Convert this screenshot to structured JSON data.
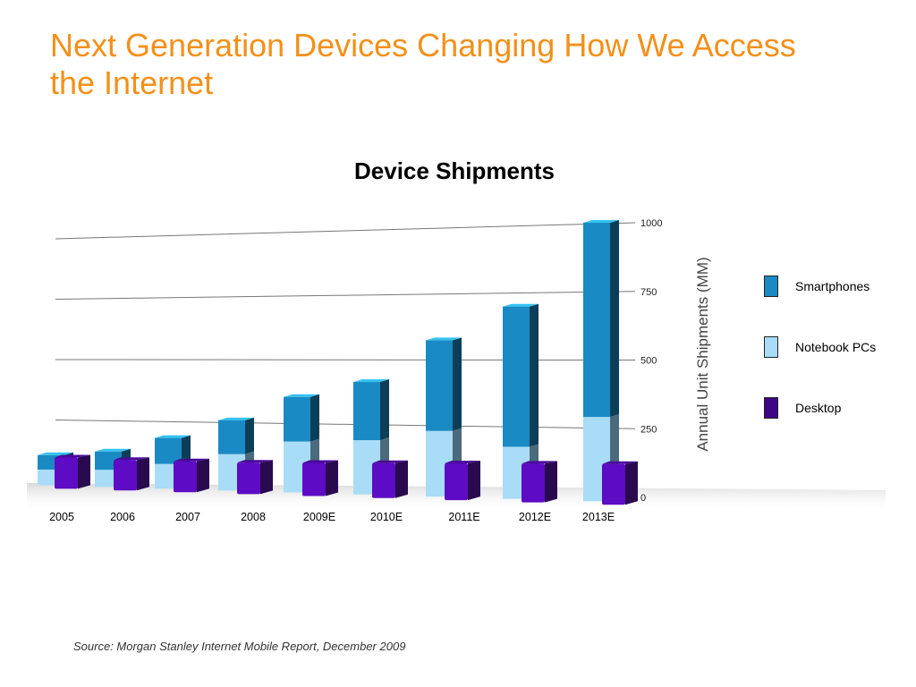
{
  "slide": {
    "title": "Next Generation Devices Changing How We Access the Internet",
    "source": "Source:  Morgan Stanley Internet Mobile Report, December 2009"
  },
  "colors": {
    "title": "#f39019",
    "smartphones": "#1a8ac4",
    "smartphones_side": "#0d3e57",
    "notebook": "#a9dcf6",
    "notebook_side": "#4b6a7c",
    "desktop": "#5d0bc4",
    "desktop_side": "#2a0a4f"
  },
  "chart_data": {
    "type": "bar",
    "title": "Device Shipments",
    "xlabel": "",
    "ylabel": "Annual Unit Shipments (MM)",
    "ylim": [
      0,
      1000
    ],
    "yticks": [
      "0",
      "250",
      "500",
      "750",
      "1000"
    ],
    "grid": true,
    "legend_position": "right",
    "categories": [
      "2005",
      "2006",
      "2007",
      "2008",
      "2009E",
      "2010E",
      "2011E",
      "2012E",
      "2013E"
    ],
    "stacked_series": [
      {
        "name": "Notebook PCs",
        "values": [
          65,
          70,
          100,
          145,
          200,
          210,
          250,
          195,
          310
        ]
      },
      {
        "name": "Smartphones",
        "values": [
          60,
          75,
          105,
          135,
          175,
          225,
          345,
          525,
          715
        ]
      }
    ],
    "series": [
      {
        "name": "Desktop",
        "values": [
          130,
          125,
          125,
          125,
          130,
          135,
          140,
          145,
          150
        ]
      }
    ],
    "legend": [
      {
        "name": "Smartphones",
        "color": "#1a8ac4"
      },
      {
        "name": "Notebook PCs",
        "color": "#a9dcf6"
      },
      {
        "name": "Desktop",
        "color": "#3d0686"
      }
    ]
  }
}
